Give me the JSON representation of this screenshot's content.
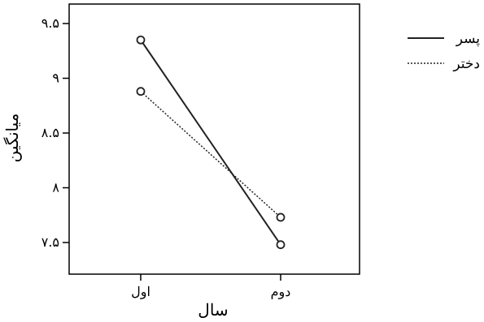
{
  "chart_data": {
    "type": "line",
    "title": "",
    "xlabel": "سال",
    "ylabel": "میانگین",
    "categories": [
      "اول",
      "دوم"
    ],
    "ylim": [
      7.4,
      9.6
    ],
    "yticks": [
      7.5,
      8,
      8.5,
      9,
      9.5
    ],
    "ytick_labels": [
      "۷.۵",
      "۸",
      "۸.۵",
      "۹",
      "۹.۵"
    ],
    "grid": false,
    "legend_position": "right",
    "series": [
      {
        "name": "پسر",
        "line_style": "solid",
        "color": "#222222",
        "values": [
          9.35,
          7.48
        ]
      },
      {
        "name": "دختر",
        "line_style": "dotted",
        "color": "#222222",
        "values": [
          8.88,
          7.73
        ]
      }
    ]
  }
}
